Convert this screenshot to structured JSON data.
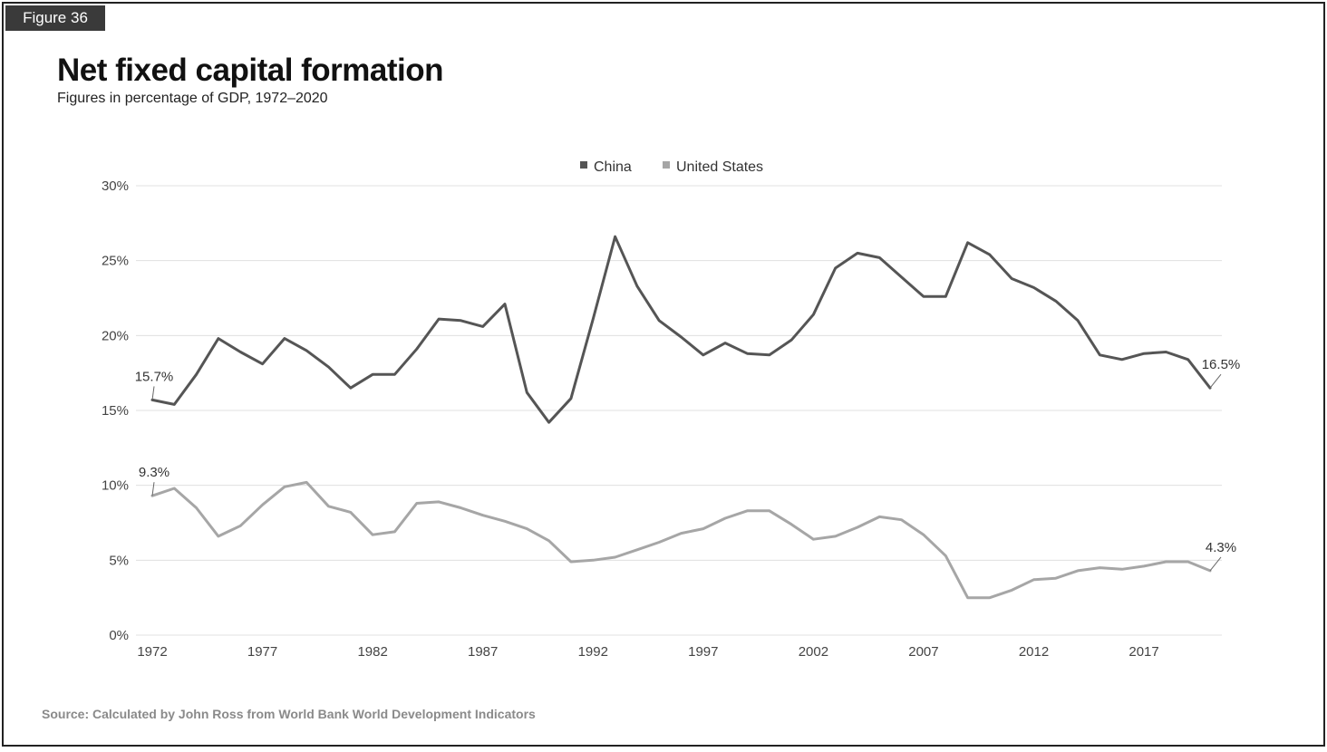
{
  "figure_label": "Figure 36",
  "title": "Net fixed capital formation",
  "subtitle": "Figures in percentage of GDP, 1972–2020",
  "source": "Source: Calculated by John Ross from World Bank World Development Indicators",
  "chart_data": {
    "type": "line",
    "title": "Net fixed capital formation",
    "subtitle": "Figures in percentage of GDP, 1972–2020",
    "xlabel": "",
    "ylabel": "",
    "xlim": [
      1972,
      2020
    ],
    "ylim": [
      0,
      30
    ],
    "grid": true,
    "legend_position": "top-center",
    "x_ticks": [
      1972,
      1977,
      1982,
      1987,
      1992,
      1997,
      2002,
      2007,
      2012,
      2017
    ],
    "x_tick_labels": [
      "1972",
      "1977",
      "1982",
      "1987",
      "1992",
      "1997",
      "2002",
      "2007",
      "2012",
      "2017"
    ],
    "y_ticks": [
      0,
      5,
      10,
      15,
      20,
      25,
      30
    ],
    "y_tick_labels": [
      "0%",
      "5%",
      "10%",
      "15%",
      "20%",
      "25%",
      "30%"
    ],
    "x": [
      1972,
      1973,
      1974,
      1975,
      1976,
      1977,
      1978,
      1979,
      1980,
      1981,
      1982,
      1983,
      1984,
      1985,
      1986,
      1987,
      1988,
      1989,
      1990,
      1991,
      1992,
      1993,
      1994,
      1995,
      1996,
      1997,
      1998,
      1999,
      2000,
      2001,
      2002,
      2003,
      2004,
      2005,
      2006,
      2007,
      2008,
      2009,
      2010,
      2011,
      2012,
      2013,
      2014,
      2015,
      2016,
      2017,
      2018,
      2019,
      2020
    ],
    "series": [
      {
        "name": "China",
        "color": "#555555",
        "values": [
          15.7,
          15.4,
          17.4,
          19.8,
          18.9,
          18.1,
          19.8,
          19.0,
          17.9,
          16.5,
          17.4,
          17.4,
          19.1,
          21.1,
          21.0,
          20.6,
          22.1,
          16.2,
          14.2,
          15.8,
          21.1,
          26.6,
          23.3,
          21.0,
          19.9,
          18.7,
          19.5,
          18.8,
          18.7,
          19.7,
          21.4,
          24.5,
          25.5,
          25.2,
          23.9,
          22.6,
          22.6,
          26.2,
          25.4,
          23.8,
          23.2,
          22.3,
          21.0,
          18.7,
          18.4,
          18.8,
          18.9,
          18.4,
          16.5
        ]
      },
      {
        "name": "United States",
        "color": "#a6a6a6",
        "values": [
          9.3,
          9.8,
          8.5,
          6.6,
          7.3,
          8.7,
          9.9,
          10.2,
          8.6,
          8.2,
          6.7,
          6.9,
          8.8,
          8.9,
          8.5,
          8.0,
          7.6,
          7.1,
          6.3,
          4.9,
          5.0,
          5.2,
          5.7,
          6.2,
          6.8,
          7.1,
          7.8,
          8.3,
          8.3,
          7.4,
          6.4,
          6.6,
          7.2,
          7.9,
          7.7,
          6.7,
          5.3,
          2.5,
          2.5,
          3.0,
          3.7,
          3.8,
          4.3,
          4.5,
          4.4,
          4.6,
          4.9,
          4.9,
          4.3
        ]
      }
    ],
    "annotations": [
      {
        "series": "China",
        "x": 1972,
        "label": "15.7%"
      },
      {
        "series": "China",
        "x": 2020,
        "label": "16.5%"
      },
      {
        "series": "United States",
        "x": 1972,
        "label": "9.3%"
      },
      {
        "series": "United States",
        "x": 2020,
        "label": "4.3%"
      }
    ]
  }
}
